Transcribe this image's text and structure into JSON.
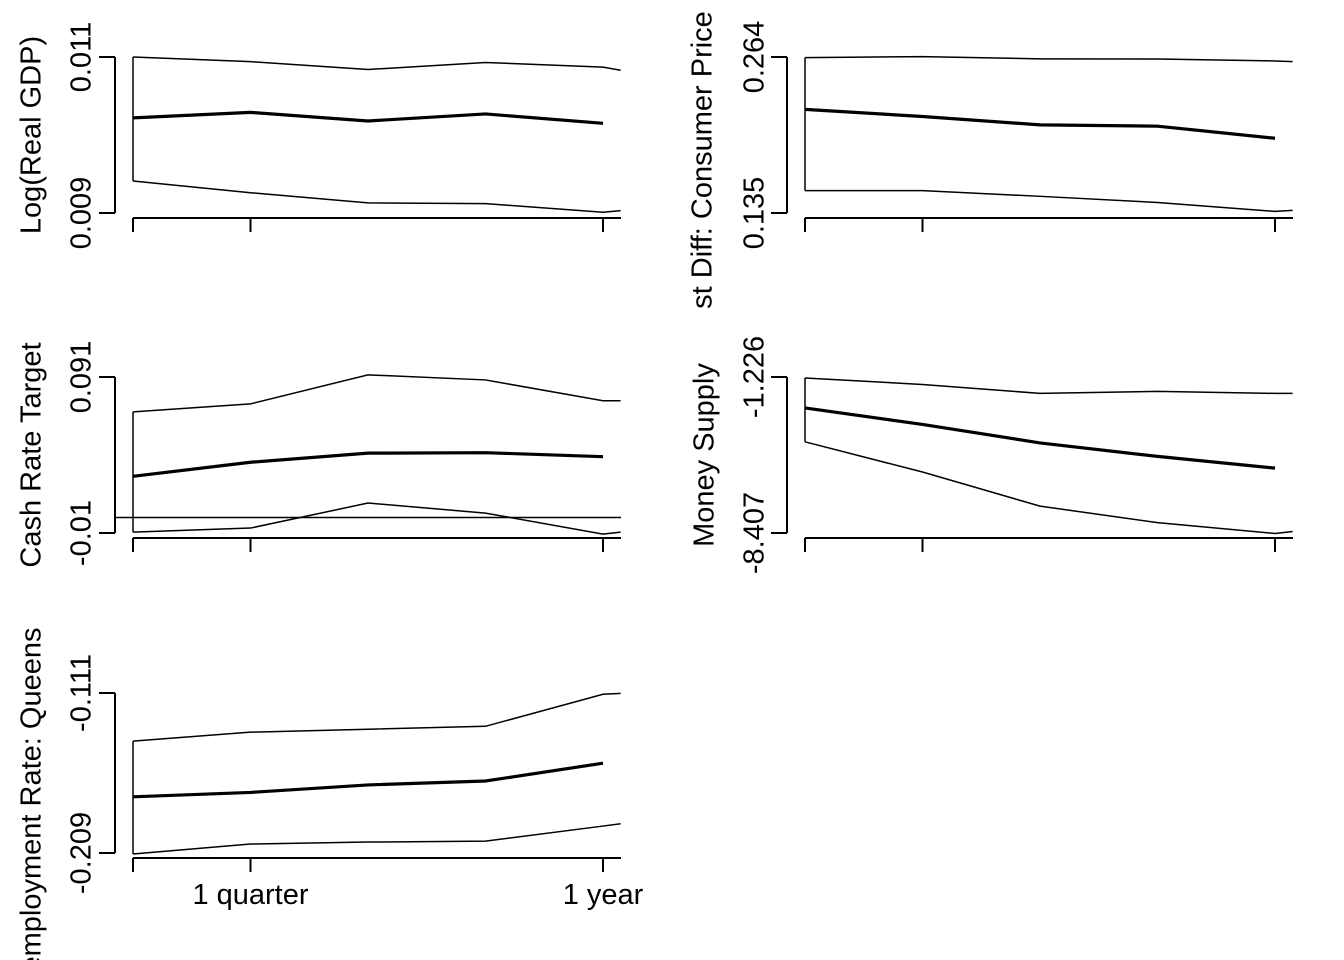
{
  "chart_data": [
    {
      "type": "line",
      "ylabel": "Log(Real GDP)",
      "yticks": [
        "0.009",
        "0.011"
      ],
      "ylim": [
        0.009,
        0.011
      ],
      "x": [
        0,
        1,
        2,
        3,
        4,
        4.15
      ],
      "series": [
        {
          "role": "upper",
          "values": [
            0.011,
            0.01094,
            0.01084,
            0.01093,
            0.01087,
            0.01083
          ]
        },
        {
          "role": "median",
          "values": [
            0.01022,
            0.01029,
            0.01018,
            0.01027,
            0.01015,
            null
          ]
        },
        {
          "role": "lower",
          "values": [
            0.00941,
            0.00926,
            0.00913,
            0.00912,
            0.00901,
            0.00903
          ]
        }
      ],
      "zero_line": false
    },
    {
      "type": "line",
      "ylabel": "st Diff: Consumer Price",
      "yticks": [
        "0.135",
        "0.264"
      ],
      "ylim": [
        0.135,
        0.264
      ],
      "x": [
        0,
        1,
        2,
        3,
        4,
        4.15
      ],
      "series": [
        {
          "role": "upper",
          "values": [
            0.2635,
            0.2643,
            0.2625,
            0.2623,
            0.2607,
            0.2602
          ]
        },
        {
          "role": "median",
          "values": [
            0.2207,
            0.2148,
            0.2079,
            0.2068,
            0.1968,
            null
          ]
        },
        {
          "role": "lower",
          "values": [
            0.1535,
            0.1535,
            0.1488,
            0.1437,
            0.1363,
            0.1372
          ]
        }
      ],
      "zero_line": false
    },
    {
      "type": "line",
      "ylabel": "Cash Rate Target",
      "yticks": [
        "-0.01",
        "0.091"
      ],
      "ylim": [
        -0.01,
        0.091
      ],
      "x": [
        0,
        1,
        2,
        3,
        4,
        4.15
      ],
      "series": [
        {
          "role": "upper",
          "values": [
            0.0684,
            0.0736,
            0.0924,
            0.0891,
            0.0756,
            0.0756
          ]
        },
        {
          "role": "median",
          "values": [
            0.0267,
            0.0358,
            0.0417,
            0.042,
            0.0394,
            null
          ]
        },
        {
          "role": "lower",
          "values": [
            -0.0094,
            -0.0068,
            0.0094,
            0.0029,
            -0.0107,
            -0.0094
          ]
        }
      ],
      "zero_line": true
    },
    {
      "type": "line",
      "ylabel": "Money Supply",
      "yticks": [
        "-8.407",
        "-1.226"
      ],
      "ylim": [
        -8.407,
        -1.226
      ],
      "x": [
        0,
        1,
        2,
        3,
        4,
        4.15
      ],
      "series": [
        {
          "role": "upper",
          "values": [
            -1.27,
            -1.57,
            -1.98,
            -1.89,
            -1.98,
            -1.98
          ]
        },
        {
          "role": "median",
          "values": [
            -2.65,
            -3.41,
            -4.26,
            -4.88,
            -5.42,
            null
          ]
        },
        {
          "role": "lower",
          "values": [
            -4.21,
            -5.6,
            -7.17,
            -7.93,
            -8.43,
            -8.34
          ]
        }
      ],
      "zero_line": false
    },
    {
      "type": "line",
      "ylabel": "employment Rate: Queens",
      "yticks": [
        "-0.209",
        "-0.111"
      ],
      "ylim": [
        -0.209,
        -0.111
      ],
      "x": [
        0,
        1,
        2,
        3,
        4,
        4.15
      ],
      "series": [
        {
          "role": "upper",
          "values": [
            -0.1405,
            -0.135,
            -0.1332,
            -0.1314,
            -0.1118,
            -0.1112
          ]
        },
        {
          "role": "median",
          "values": [
            -0.1746,
            -0.1719,
            -0.1673,
            -0.1649,
            -0.154,
            null
          ]
        },
        {
          "role": "lower",
          "values": [
            -0.2096,
            -0.2035,
            -0.2023,
            -0.2017,
            -0.1925,
            -0.1911
          ]
        }
      ],
      "zero_line": false
    }
  ],
  "xtick_labels": [
    "1 quarter",
    "1 year"
  ]
}
